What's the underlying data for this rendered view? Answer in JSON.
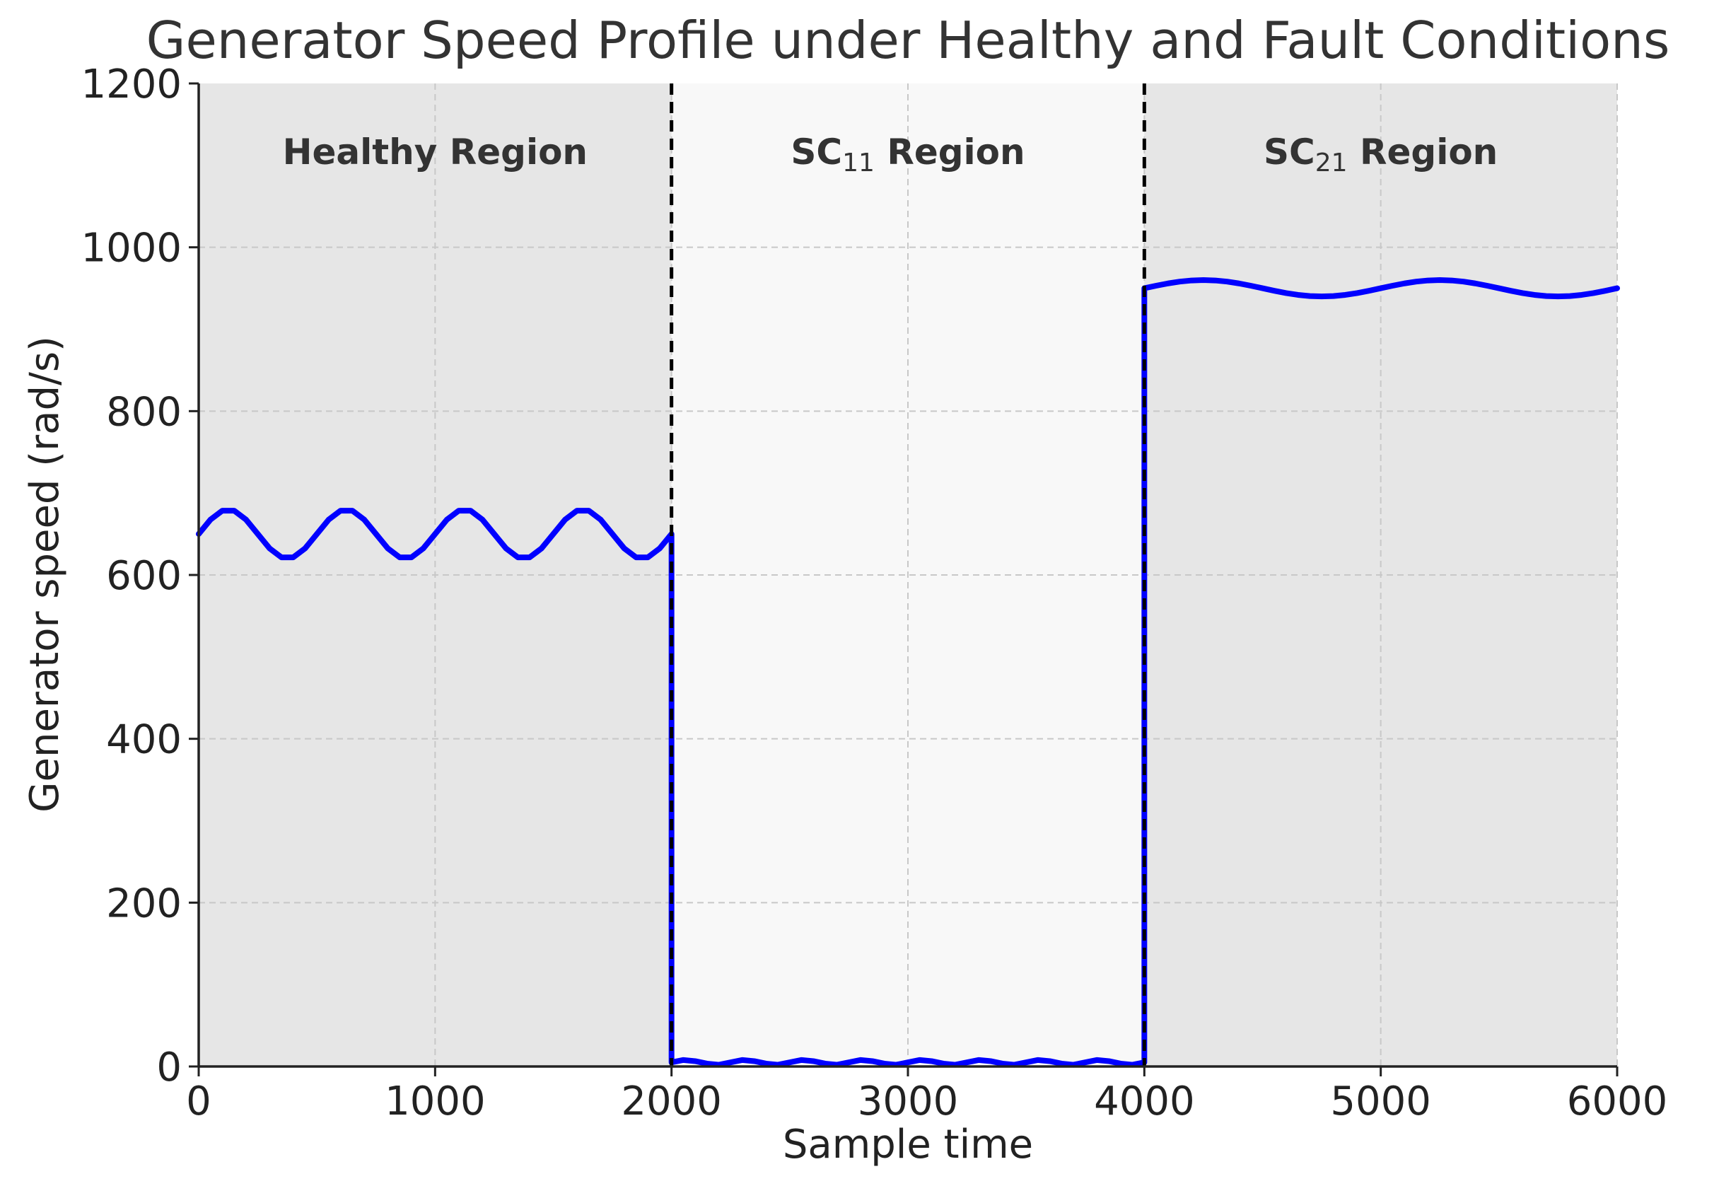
{
  "chart_data": {
    "type": "line",
    "title": "Generator Speed Profile under Healthy and Fault Conditions",
    "xlabel": "Sample time",
    "ylabel": "Generator speed (rad/s)",
    "xlim": [
      0,
      6000
    ],
    "ylim": [
      0,
      1200
    ],
    "xticks": [
      0,
      1000,
      2000,
      3000,
      4000,
      5000,
      6000
    ],
    "yticks": [
      0,
      200,
      400,
      600,
      800,
      1000,
      1200
    ],
    "grid": true,
    "regions": [
      {
        "prefix": "Healthy Region",
        "subscript": "",
        "suffix": "",
        "x_range": [
          0,
          2000
        ],
        "shade": "#e6e6e6"
      },
      {
        "prefix": "SC",
        "subscript": "11",
        "suffix": " Region",
        "x_range": [
          2000,
          4000
        ],
        "shade": "#f8f8f8"
      },
      {
        "prefix": "SC",
        "subscript": "21",
        "suffix": " Region",
        "x_range": [
          4000,
          6000
        ],
        "shade": "#e6e6e6"
      }
    ],
    "boundaries": [
      2000,
      4000
    ],
    "series": [
      {
        "color": "#0000ff",
        "x": [
          0,
          50,
          100,
          150,
          200,
          250,
          300,
          350,
          400,
          450,
          500,
          550,
          600,
          650,
          700,
          750,
          800,
          850,
          900,
          950,
          1000,
          1050,
          1100,
          1150,
          1200,
          1250,
          1300,
          1350,
          1400,
          1450,
          1500,
          1550,
          1600,
          1650,
          1700,
          1750,
          1800,
          1850,
          1900,
          1950,
          2000,
          2000,
          2050,
          2100,
          2150,
          2200,
          2250,
          2300,
          2350,
          2400,
          2450,
          2500,
          2550,
          2600,
          2650,
          2700,
          2750,
          2800,
          2850,
          2900,
          2950,
          3000,
          3050,
          3100,
          3150,
          3200,
          3250,
          3300,
          3350,
          3400,
          3450,
          3500,
          3550,
          3600,
          3650,
          3700,
          3750,
          3800,
          3850,
          3900,
          3950,
          4000,
          4000,
          4050,
          4100,
          4150,
          4200,
          4250,
          4300,
          4350,
          4400,
          4450,
          4500,
          4550,
          4600,
          4650,
          4700,
          4750,
          4800,
          4850,
          4900,
          4950,
          5000,
          5050,
          5100,
          5150,
          5200,
          5250,
          5300,
          5350,
          5400,
          5450,
          5500,
          5550,
          5600,
          5650,
          5700,
          5750,
          5800,
          5850,
          5900,
          5950,
          6000
        ],
        "y": [
          650,
          667.6,
          678.5,
          678.5,
          667.6,
          650,
          632.4,
          621.5,
          621.5,
          632.4,
          650,
          667.6,
          678.5,
          678.5,
          667.6,
          650,
          632.4,
          621.5,
          621.5,
          632.4,
          650,
          667.6,
          678.5,
          678.5,
          667.6,
          650,
          632.4,
          621.5,
          621.5,
          632.4,
          650,
          667.6,
          678.5,
          678.5,
          667.6,
          650,
          632.4,
          621.5,
          621.5,
          632.4,
          650,
          5,
          7.9,
          6.5,
          3.5,
          2.1,
          5,
          7.9,
          6.5,
          3.5,
          2.1,
          5,
          7.9,
          6.5,
          3.5,
          2.1,
          5,
          7.9,
          6.5,
          3.5,
          2.1,
          5,
          7.9,
          6.5,
          3.5,
          2.1,
          5,
          7.9,
          6.5,
          3.5,
          2.1,
          5,
          7.9,
          6.5,
          3.5,
          2.1,
          5,
          7.9,
          6.5,
          3.5,
          2.1,
          5,
          950,
          953.1,
          955.9,
          958.1,
          959.5,
          960,
          959.5,
          958.1,
          955.9,
          953.1,
          950,
          946.9,
          944.1,
          941.9,
          940.5,
          940,
          940.5,
          941.9,
          944.1,
          946.9,
          950,
          953.1,
          955.9,
          958.1,
          959.5,
          960,
          959.5,
          958.1,
          955.9,
          953.1,
          950,
          946.9,
          944.1,
          941.9,
          940.5,
          940,
          940.5,
          941.9,
          944.1,
          946.9,
          950
        ]
      }
    ]
  },
  "colors": {
    "line": "#0000ff",
    "boundary": "#000000",
    "grid": "#c8c8c8",
    "healthy_shade": "#e6e6e6",
    "sc11_shade": "#f8f8f8",
    "sc21_shade": "#e6e6e6"
  }
}
